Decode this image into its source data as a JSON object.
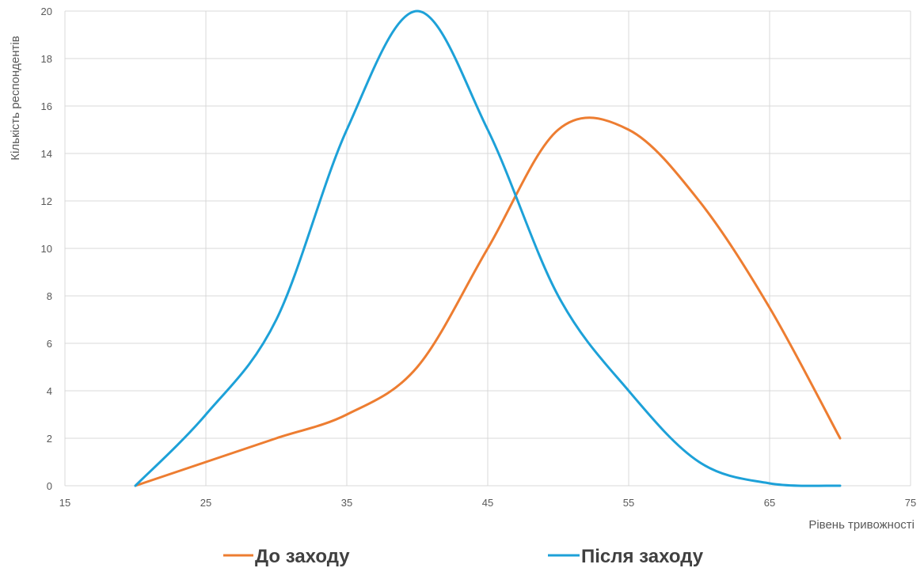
{
  "chart_data": {
    "type": "line",
    "smooth": true,
    "xlabel": "Рівень тривожності",
    "ylabel": "Кількість респондентів",
    "xlim": [
      15,
      75
    ],
    "ylim": [
      0,
      20
    ],
    "xticks": [
      "15",
      "25",
      "35",
      "45",
      "55",
      "65",
      "75"
    ],
    "yticks": [
      "0",
      "2",
      "4",
      "6",
      "8",
      "10",
      "12",
      "14",
      "16",
      "18",
      "20"
    ],
    "grid": true,
    "legend_position": "bottom",
    "series": [
      {
        "name": "До заходу",
        "color": "#ED7D31",
        "points": [
          [
            20,
            0
          ],
          [
            25,
            1
          ],
          [
            30,
            2
          ],
          [
            35,
            3
          ],
          [
            40,
            5
          ],
          [
            45,
            10
          ],
          [
            50,
            15
          ],
          [
            55,
            15
          ],
          [
            60,
            12
          ],
          [
            65,
            7.5
          ],
          [
            70,
            2
          ]
        ]
      },
      {
        "name": "Після заходу",
        "color": "#1DA1D8",
        "points": [
          [
            20,
            0
          ],
          [
            25,
            3
          ],
          [
            30,
            7
          ],
          [
            35,
            15
          ],
          [
            40,
            20
          ],
          [
            45,
            15
          ],
          [
            50,
            8
          ],
          [
            55,
            4
          ],
          [
            60,
            1
          ],
          [
            65,
            0.1
          ],
          [
            70,
            0
          ]
        ]
      }
    ]
  }
}
